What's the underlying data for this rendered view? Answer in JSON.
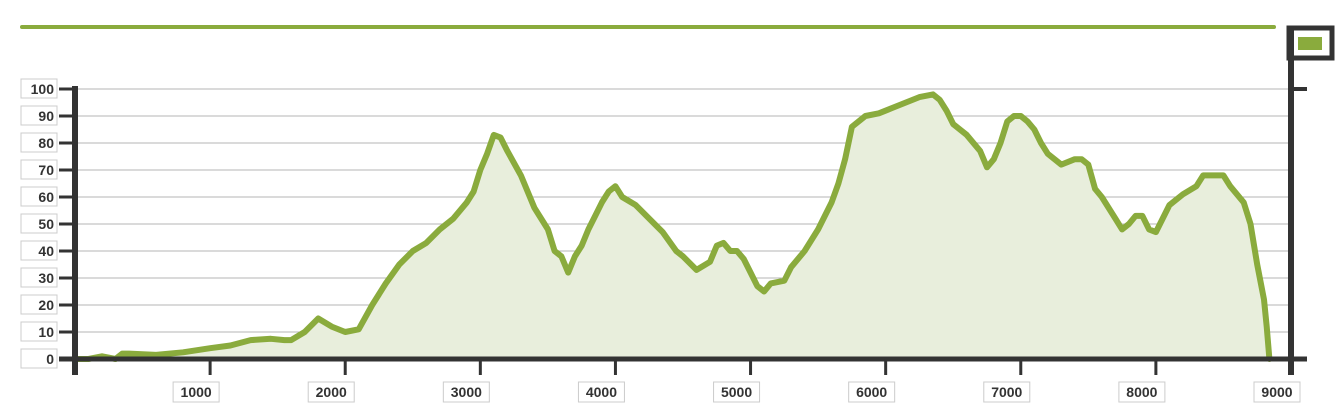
{
  "chart_data": {
    "type": "area",
    "title": "",
    "xlabel": "",
    "ylabel": "",
    "xlim": [
      0,
      9000
    ],
    "ylim": [
      0,
      100
    ],
    "x_ticks": [
      "1000",
      "2000",
      "3000",
      "4000",
      "5000",
      "6000",
      "7000",
      "8000",
      "9000"
    ],
    "y_ticks": [
      "0",
      "10",
      "20",
      "30",
      "40",
      "50",
      "60",
      "70",
      "80",
      "90",
      "100"
    ],
    "grid": true,
    "legend": {
      "position": "top-right",
      "entries": [
        ""
      ]
    },
    "series": [
      {
        "color": "#8aab3d",
        "fill": "#e8eedc",
        "points": [
          [
            0,
            0
          ],
          [
            100,
            0
          ],
          [
            200,
            1
          ],
          [
            300,
            0
          ],
          [
            350,
            2
          ],
          [
            400,
            2
          ],
          [
            600,
            1.5
          ],
          [
            800,
            2.5
          ],
          [
            1000,
            4
          ],
          [
            1150,
            5
          ],
          [
            1300,
            7
          ],
          [
            1450,
            7.5
          ],
          [
            1550,
            7
          ],
          [
            1600,
            7
          ],
          [
            1700,
            10
          ],
          [
            1800,
            15
          ],
          [
            1900,
            12
          ],
          [
            2000,
            10
          ],
          [
            2100,
            11
          ],
          [
            2200,
            20
          ],
          [
            2300,
            28
          ],
          [
            2400,
            35
          ],
          [
            2500,
            40
          ],
          [
            2600,
            43
          ],
          [
            2700,
            48
          ],
          [
            2800,
            52
          ],
          [
            2900,
            58
          ],
          [
            2950,
            62
          ],
          [
            3000,
            70
          ],
          [
            3050,
            76
          ],
          [
            3100,
            83
          ],
          [
            3150,
            82
          ],
          [
            3200,
            77
          ],
          [
            3300,
            68
          ],
          [
            3400,
            56
          ],
          [
            3500,
            48
          ],
          [
            3550,
            40
          ],
          [
            3600,
            38
          ],
          [
            3650,
            32
          ],
          [
            3700,
            38
          ],
          [
            3750,
            42
          ],
          [
            3800,
            48
          ],
          [
            3850,
            53
          ],
          [
            3900,
            58
          ],
          [
            3950,
            62
          ],
          [
            4000,
            64
          ],
          [
            4050,
            60
          ],
          [
            4150,
            57
          ],
          [
            4250,
            52
          ],
          [
            4350,
            47
          ],
          [
            4450,
            40
          ],
          [
            4500,
            38
          ],
          [
            4600,
            33
          ],
          [
            4700,
            36
          ],
          [
            4750,
            42
          ],
          [
            4800,
            43
          ],
          [
            4850,
            40
          ],
          [
            4900,
            40
          ],
          [
            4950,
            37
          ],
          [
            5000,
            32
          ],
          [
            5050,
            27
          ],
          [
            5100,
            25
          ],
          [
            5150,
            28
          ],
          [
            5250,
            29
          ],
          [
            5300,
            34
          ],
          [
            5400,
            40
          ],
          [
            5500,
            48
          ],
          [
            5600,
            58
          ],
          [
            5650,
            65
          ],
          [
            5700,
            74
          ],
          [
            5750,
            86
          ],
          [
            5850,
            90
          ],
          [
            5950,
            91
          ],
          [
            6050,
            93
          ],
          [
            6150,
            95
          ],
          [
            6250,
            97
          ],
          [
            6350,
            98
          ],
          [
            6400,
            96
          ],
          [
            6450,
            92
          ],
          [
            6500,
            87
          ],
          [
            6600,
            83
          ],
          [
            6700,
            77
          ],
          [
            6750,
            71
          ],
          [
            6800,
            74
          ],
          [
            6850,
            80
          ],
          [
            6900,
            88
          ],
          [
            6950,
            90
          ],
          [
            7000,
            90
          ],
          [
            7050,
            88
          ],
          [
            7100,
            85
          ],
          [
            7150,
            80
          ],
          [
            7200,
            76
          ],
          [
            7300,
            72
          ],
          [
            7400,
            74
          ],
          [
            7450,
            74
          ],
          [
            7500,
            72
          ],
          [
            7550,
            63
          ],
          [
            7600,
            60
          ],
          [
            7700,
            52
          ],
          [
            7750,
            48
          ],
          [
            7800,
            50
          ],
          [
            7850,
            53
          ],
          [
            7900,
            53
          ],
          [
            7950,
            48
          ],
          [
            8000,
            47
          ],
          [
            8100,
            57
          ],
          [
            8200,
            61
          ],
          [
            8300,
            64
          ],
          [
            8350,
            68
          ],
          [
            8400,
            68
          ],
          [
            8500,
            68
          ],
          [
            8550,
            64
          ],
          [
            8650,
            58
          ],
          [
            8700,
            50
          ],
          [
            8750,
            35
          ],
          [
            8800,
            22
          ],
          [
            8820,
            12
          ],
          [
            8840,
            0
          ]
        ]
      }
    ]
  }
}
